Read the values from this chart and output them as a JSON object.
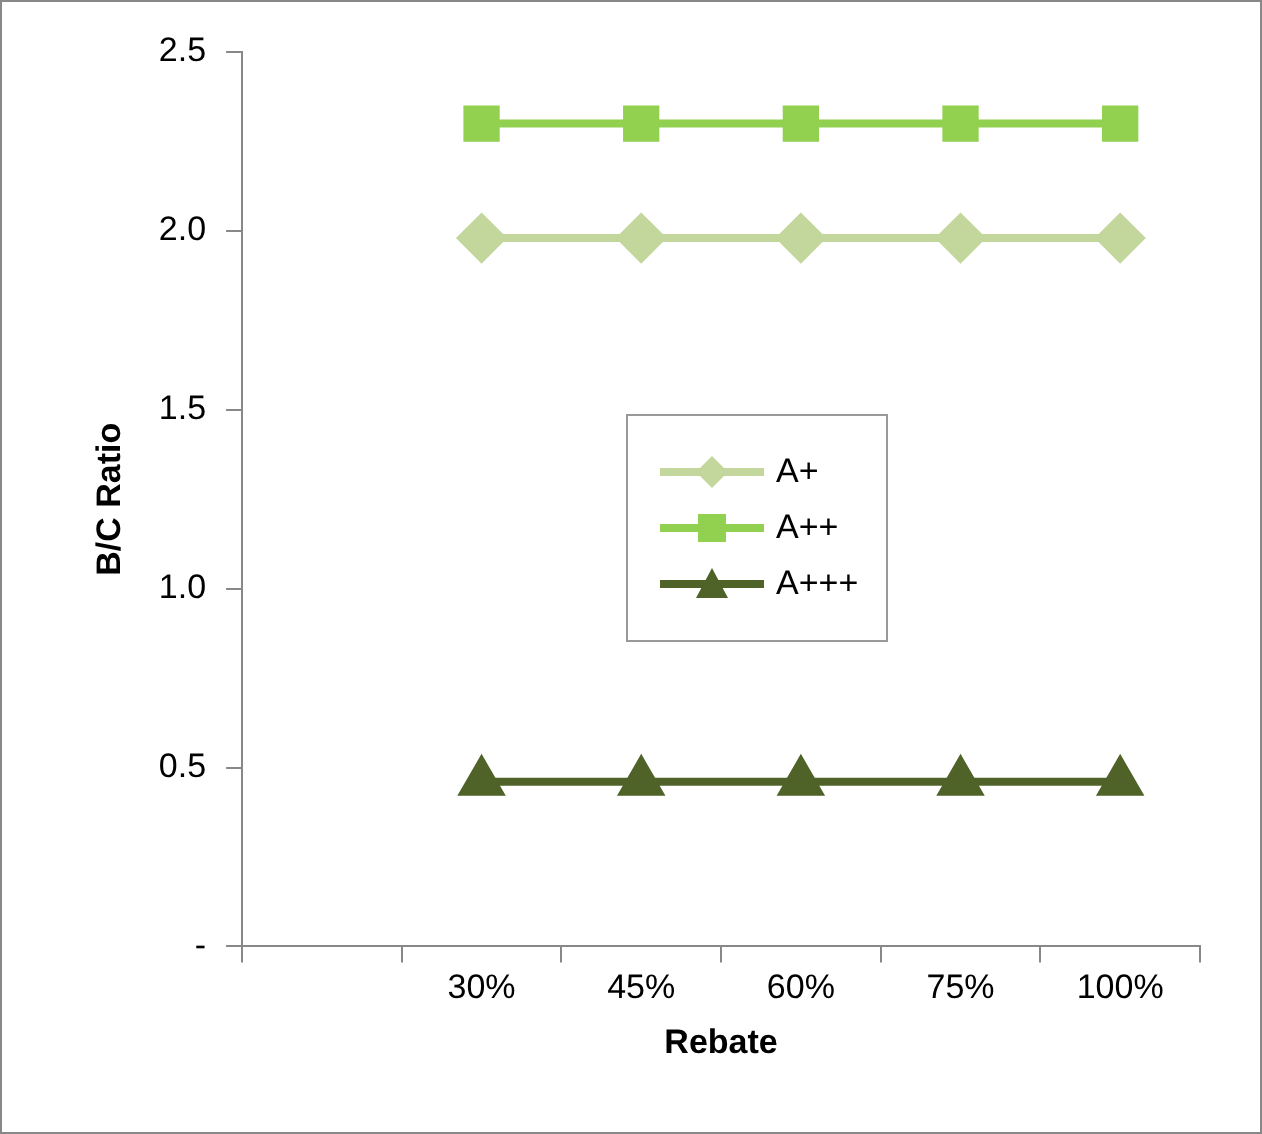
{
  "chart_data": {
    "type": "line",
    "xlabel": "Rebate",
    "ylabel": "B/C Ratio",
    "categories": [
      null,
      "30%",
      "45%",
      "60%",
      "75%",
      "100%"
    ],
    "series": [
      {
        "name": "A+",
        "color": "#c3d69b",
        "marker": "diamond",
        "values": [
          null,
          1.98,
          1.98,
          1.98,
          1.98,
          1.98
        ]
      },
      {
        "name": "A++",
        "color": "#92d050",
        "marker": "square",
        "values": [
          null,
          2.3,
          2.3,
          2.3,
          2.3,
          2.3
        ]
      },
      {
        "name": "A+++",
        "color": "#4f6228",
        "marker": "triangle",
        "values": [
          null,
          0.46,
          0.46,
          0.46,
          0.46,
          0.46
        ]
      }
    ],
    "ylim": [
      0,
      2.5
    ],
    "yticks": [
      {
        "value": 0,
        "label": "-"
      },
      0.5,
      {
        "value": 1,
        "label": "1.0"
      },
      1.5,
      {
        "value": 2,
        "label": "2.0"
      },
      2.5
    ],
    "grid": false,
    "legend": "center"
  }
}
